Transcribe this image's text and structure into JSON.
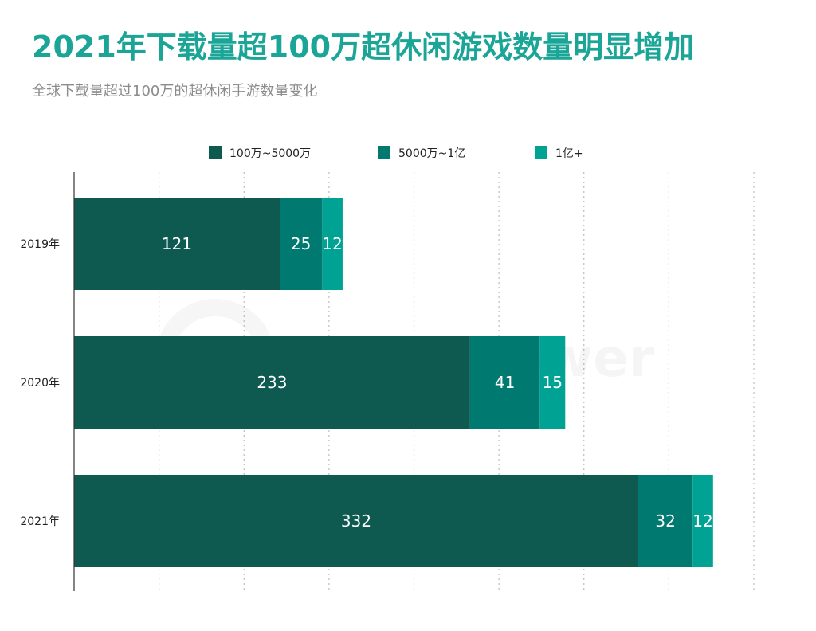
{
  "header": {
    "title": "2021年下载量超100万超休闲游戏数量明显增加",
    "subtitle": "全球下载量超过100万的超休闲手游数量变化"
  },
  "watermark_text": "SensorTower",
  "colors": {
    "title": "#1aa596",
    "subtitle": "#8c8c8c",
    "series": [
      "#0f5a50",
      "#007a70",
      "#00a393"
    ]
  },
  "chart_data": {
    "type": "bar",
    "orientation": "horizontal",
    "stacked": true,
    "categories": [
      "2019年",
      "2020年",
      "2021年"
    ],
    "series": [
      {
        "name": "100万~5000万",
        "values": [
          121,
          233,
          332
        ]
      },
      {
        "name": "5000万~1亿",
        "values": [
          25,
          41,
          32
        ]
      },
      {
        "name": "1亿+",
        "values": [
          12,
          15,
          12
        ]
      }
    ],
    "xlim": [
      0,
      400
    ],
    "grid": "vertical-dotted",
    "legend": "top-center",
    "data_labels": true
  }
}
